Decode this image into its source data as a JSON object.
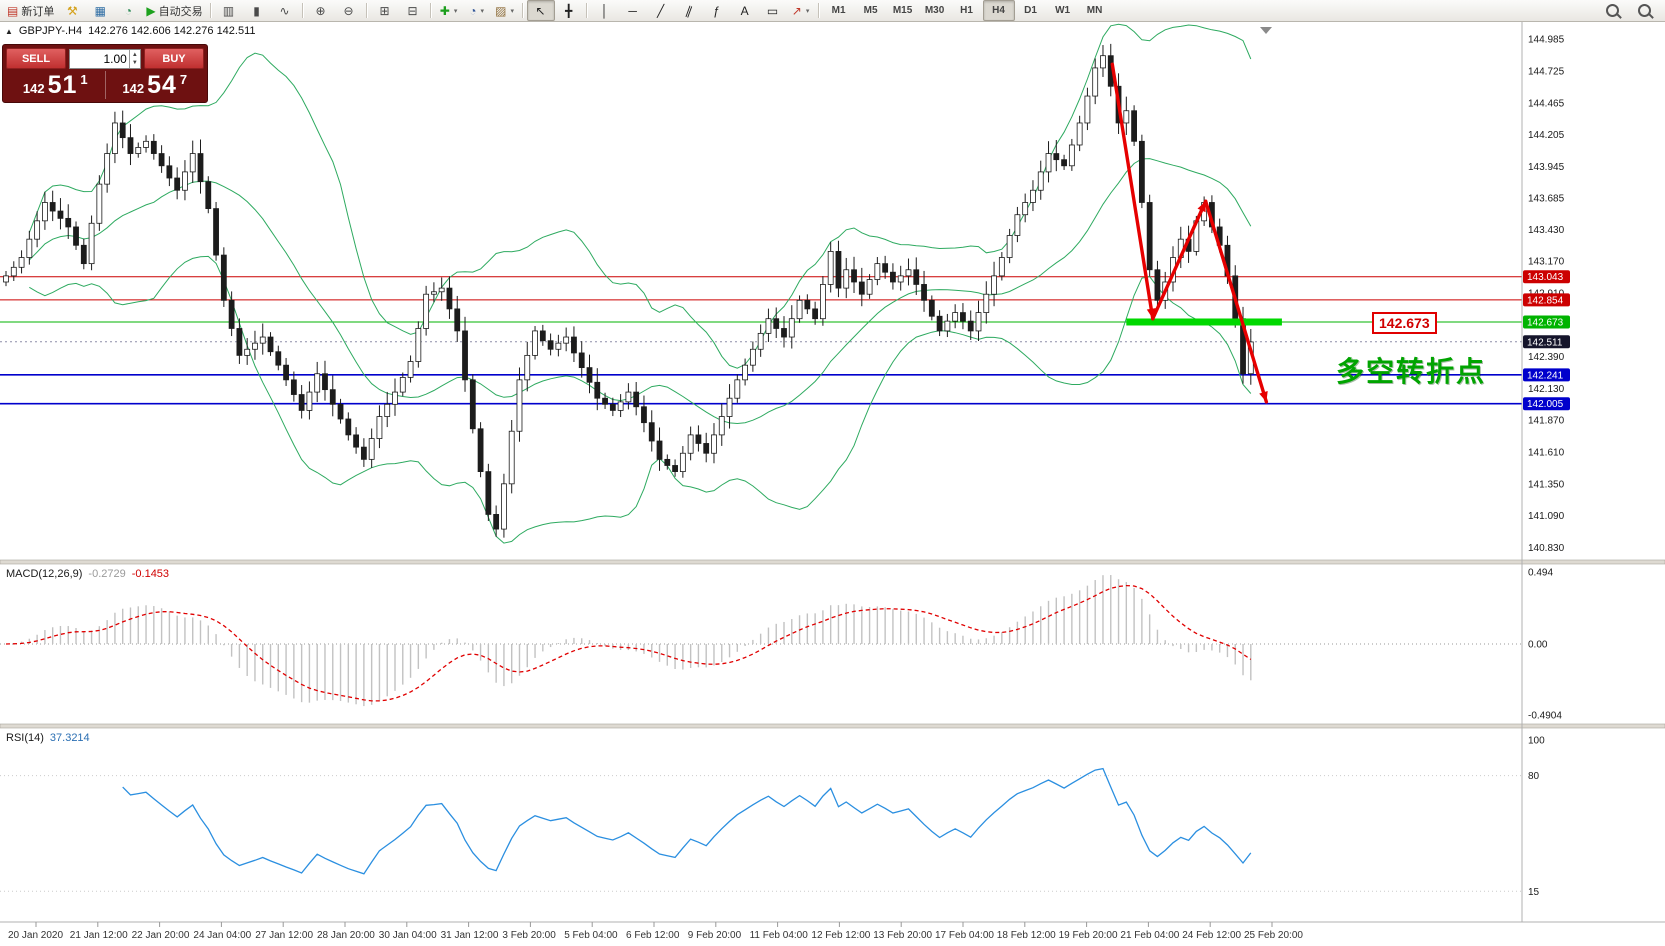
{
  "toolbar": {
    "groups": [
      {
        "items": [
          {
            "name": "new-order-button",
            "glyph": "▤",
            "glyph_color": "#c0392b",
            "label": "新订单"
          },
          {
            "name": "strategy-tester-icon",
            "glyph": "⚒",
            "glyph_color": "#d4a017"
          },
          {
            "name": "profiles-icon",
            "glyph": "▦",
            "glyph_color": "#2e6da4"
          },
          {
            "name": "market-watch-icon",
            "glyph": "◔",
            "glyph_color": "#2e8b57"
          },
          {
            "name": "auto-trading-button",
            "glyph": "▶",
            "glyph_color": "#1da11d",
            "label": "自动交易"
          }
        ]
      },
      {
        "items": [
          {
            "name": "bar-chart-icon",
            "glyph": "▥",
            "glyph_color": "#4a4a4a"
          },
          {
            "name": "candlestick-chart-icon",
            "glyph": "▮",
            "glyph_color": "#4a4a4a"
          },
          {
            "name": "line-chart-icon",
            "glyph": "∿",
            "glyph_color": "#4a4a4a"
          }
        ]
      },
      {
        "items": [
          {
            "name": "zoom-in-icon",
            "glyph": "⊕",
            "glyph_color": "#4a4a4a"
          },
          {
            "name": "zoom-out-icon",
            "glyph": "⊖",
            "glyph_color": "#4a4a4a"
          }
        ]
      },
      {
        "items": [
          {
            "name": "tile-windows-icon",
            "glyph": "⊞",
            "glyph_color": "#4a4a4a"
          },
          {
            "name": "cascade-windows-icon",
            "glyph": "⊟",
            "glyph_color": "#4a4a4a"
          }
        ]
      },
      {
        "items": [
          {
            "name": "add-indicator-button",
            "glyph": "✚",
            "glyph_color": "#1c9e1c",
            "caret": true
          },
          {
            "name": "periods-button",
            "glyph": "◔",
            "glyph_color": "#35589a",
            "caret": true
          },
          {
            "name": "templates-button",
            "glyph": "▨",
            "glyph_color": "#8e6d3a",
            "caret": true
          }
        ]
      },
      {
        "items": [
          {
            "name": "cursor-tool",
            "glyph": "↖",
            "glyph_color": "#222222",
            "active": true
          },
          {
            "name": "crosshair-tool",
            "glyph": "╋",
            "glyph_color": "#222222"
          }
        ]
      },
      {
        "items": [
          {
            "name": "vertical-line-tool",
            "glyph": "│",
            "glyph_color": "#222222"
          },
          {
            "name": "horizontal-line-tool",
            "glyph": "─",
            "glyph_color": "#222222"
          },
          {
            "name": "trendline-tool",
            "glyph": "╱",
            "glyph_color": "#222222"
          },
          {
            "name": "channel-tool",
            "glyph": "∥",
            "glyph_color": "#222222",
            "rot": true
          },
          {
            "name": "fibonacci-tool",
            "glyph": "ƒ",
            "glyph_color": "#222222"
          },
          {
            "name": "text-tool",
            "glyph": "A",
            "glyph_color": "#222222"
          },
          {
            "name": "label-tool",
            "glyph": "▭",
            "glyph_color": "#222222"
          },
          {
            "name": "arrows-tool",
            "glyph": "↗",
            "glyph_color": "#c0392b",
            "caret": true
          }
        ]
      }
    ],
    "timeframes": [
      {
        "name": "tf-m1",
        "label": "M1"
      },
      {
        "name": "tf-m5",
        "label": "M5"
      },
      {
        "name": "tf-m15",
        "label": "M15"
      },
      {
        "name": "tf-m30",
        "label": "M30"
      },
      {
        "name": "tf-h1",
        "label": "H1"
      },
      {
        "name": "tf-h4",
        "label": "H4",
        "active": true
      },
      {
        "name": "tf-d1",
        "label": "D1"
      },
      {
        "name": "tf-w1",
        "label": "W1"
      },
      {
        "name": "tf-mn",
        "label": "MN"
      }
    ]
  },
  "one_click": {
    "sell_label": "SELL",
    "buy_label": "BUY",
    "volume": "1.00",
    "sell_price_small": "142",
    "sell_price_big": "51",
    "sell_price_sup": "1",
    "buy_price_small": "142",
    "buy_price_big": "54",
    "buy_price_sup": "7"
  },
  "chart_info": {
    "collapse_glyph": "▲",
    "symbol": "GBPJPY-.H4",
    "ohlc": "142.276 142.606 142.276 142.511"
  },
  "macd": {
    "name": "MACD(12,26,9)",
    "main_value": "-0.2729",
    "signal_value": "-0.1453",
    "axis_labels": [
      "0.494",
      "0.00",
      "-0.4904"
    ]
  },
  "rsi": {
    "name": "RSI(14)",
    "value": "37.3214",
    "axis_labels": [
      "100",
      "80",
      "15"
    ]
  },
  "annotations": {
    "price_callout": "142.673",
    "turning_point_text": "多空转折点"
  },
  "chart_data": {
    "type": "candlestick",
    "title": "GBPJPY-.H4",
    "timeframe": "H4",
    "y_range": [
      140.76,
      145.06
    ],
    "price_axis_ticks": [
      "144.985",
      "144.725",
      "144.465",
      "144.205",
      "143.945",
      "143.685",
      "143.430",
      "143.170",
      "142.910",
      "142.650",
      "142.390",
      "142.130",
      "141.870",
      "141.610",
      "141.350",
      "141.090",
      "140.830"
    ],
    "first_open": 143.0,
    "closes": [
      143.05,
      143.12,
      143.2,
      143.35,
      143.5,
      143.65,
      143.58,
      143.52,
      143.45,
      143.3,
      143.15,
      143.48,
      143.8,
      144.05,
      144.3,
      144.18,
      144.05,
      144.1,
      144.15,
      144.05,
      143.95,
      143.85,
      143.75,
      143.9,
      144.05,
      143.82,
      143.6,
      143.22,
      142.85,
      142.62,
      142.4,
      142.45,
      142.5,
      142.55,
      142.43,
      142.32,
      142.2,
      142.08,
      141.95,
      142.1,
      142.25,
      142.12,
      142.0,
      141.88,
      141.75,
      141.65,
      141.55,
      141.72,
      141.9,
      142.0,
      142.1,
      142.22,
      142.35,
      142.62,
      142.9,
      142.92,
      142.95,
      142.78,
      142.6,
      142.2,
      141.8,
      141.45,
      141.1,
      140.98,
      141.35,
      141.78,
      142.2,
      142.4,
      142.6,
      142.52,
      142.45,
      142.5,
      142.55,
      142.42,
      142.3,
      142.18,
      142.05,
      142.0,
      141.95,
      142.02,
      142.1,
      141.98,
      141.85,
      141.7,
      141.55,
      141.5,
      141.45,
      141.6,
      141.75,
      141.68,
      141.6,
      141.75,
      141.9,
      142.05,
      142.2,
      142.32,
      142.45,
      142.58,
      142.7,
      142.62,
      142.55,
      142.7,
      142.85,
      142.78,
      142.7,
      142.98,
      143.25,
      142.95,
      143.1,
      143.0,
      142.9,
      143.02,
      143.15,
      143.08,
      143.0,
      143.05,
      143.1,
      142.98,
      142.85,
      142.72,
      142.6,
      142.68,
      142.75,
      142.68,
      142.6,
      142.75,
      142.9,
      143.05,
      143.2,
      143.38,
      143.55,
      143.65,
      143.75,
      143.9,
      144.05,
      144.0,
      143.95,
      144.12,
      144.3,
      144.52,
      144.75,
      144.85,
      144.6,
      144.3,
      144.4,
      144.15,
      143.65,
      143.1,
      142.85,
      143.0,
      143.2,
      143.35,
      143.25,
      143.5,
      143.65,
      143.45,
      143.3,
      143.05,
      142.7,
      142.25,
      142.51
    ],
    "bid_price": 142.511,
    "bid_label": "142.511",
    "bollinger": {
      "period": 20,
      "deviation": 2,
      "color": "#2eaa60"
    },
    "levels": [
      {
        "price": 143.043,
        "label": "143.043",
        "color": "#cc0000",
        "width": 1
      },
      {
        "price": 142.854,
        "label": "142.854",
        "color": "#cc0000",
        "width": 1
      },
      {
        "price": 142.673,
        "label": "142.673",
        "color": "#00b300",
        "width": 1
      },
      {
        "price": 142.241,
        "label": "142.241",
        "color": "#0000cc",
        "width": 1.6
      },
      {
        "price": 142.005,
        "label": "142.005",
        "color": "#0000cc",
        "width": 1.6
      }
    ],
    "highlight_segment": {
      "price": 142.673,
      "from_bar": 144,
      "to_bar": 164,
      "color": "#00d800"
    },
    "arrows": {
      "color": "#e60000",
      "points_bar_price": [
        [
          142.2,
          144.78
        ],
        [
          147.4,
          142.7
        ],
        [
          154.2,
          143.66
        ],
        [
          162.0,
          142.02
        ]
      ]
    },
    "time_labels": [
      "20 Jan 2020",
      "21 Jan 12:00",
      "22 Jan 20:00",
      "24 Jan 04:00",
      "27 Jan 12:00",
      "28 Jan 20:00",
      "30 Jan 04:00",
      "31 Jan 12:00",
      "3 Feb 20:00",
      "5 Feb 04:00",
      "6 Feb 12:00",
      "9 Feb 20:00",
      "11 Feb 04:00",
      "12 Feb 12:00",
      "13 Feb 20:00",
      "17 Feb 04:00",
      "18 Feb 12:00",
      "19 Feb 20:00",
      "21 Feb 04:00",
      "24 Feb 12:00",
      "25 Feb 20:00"
    ]
  }
}
